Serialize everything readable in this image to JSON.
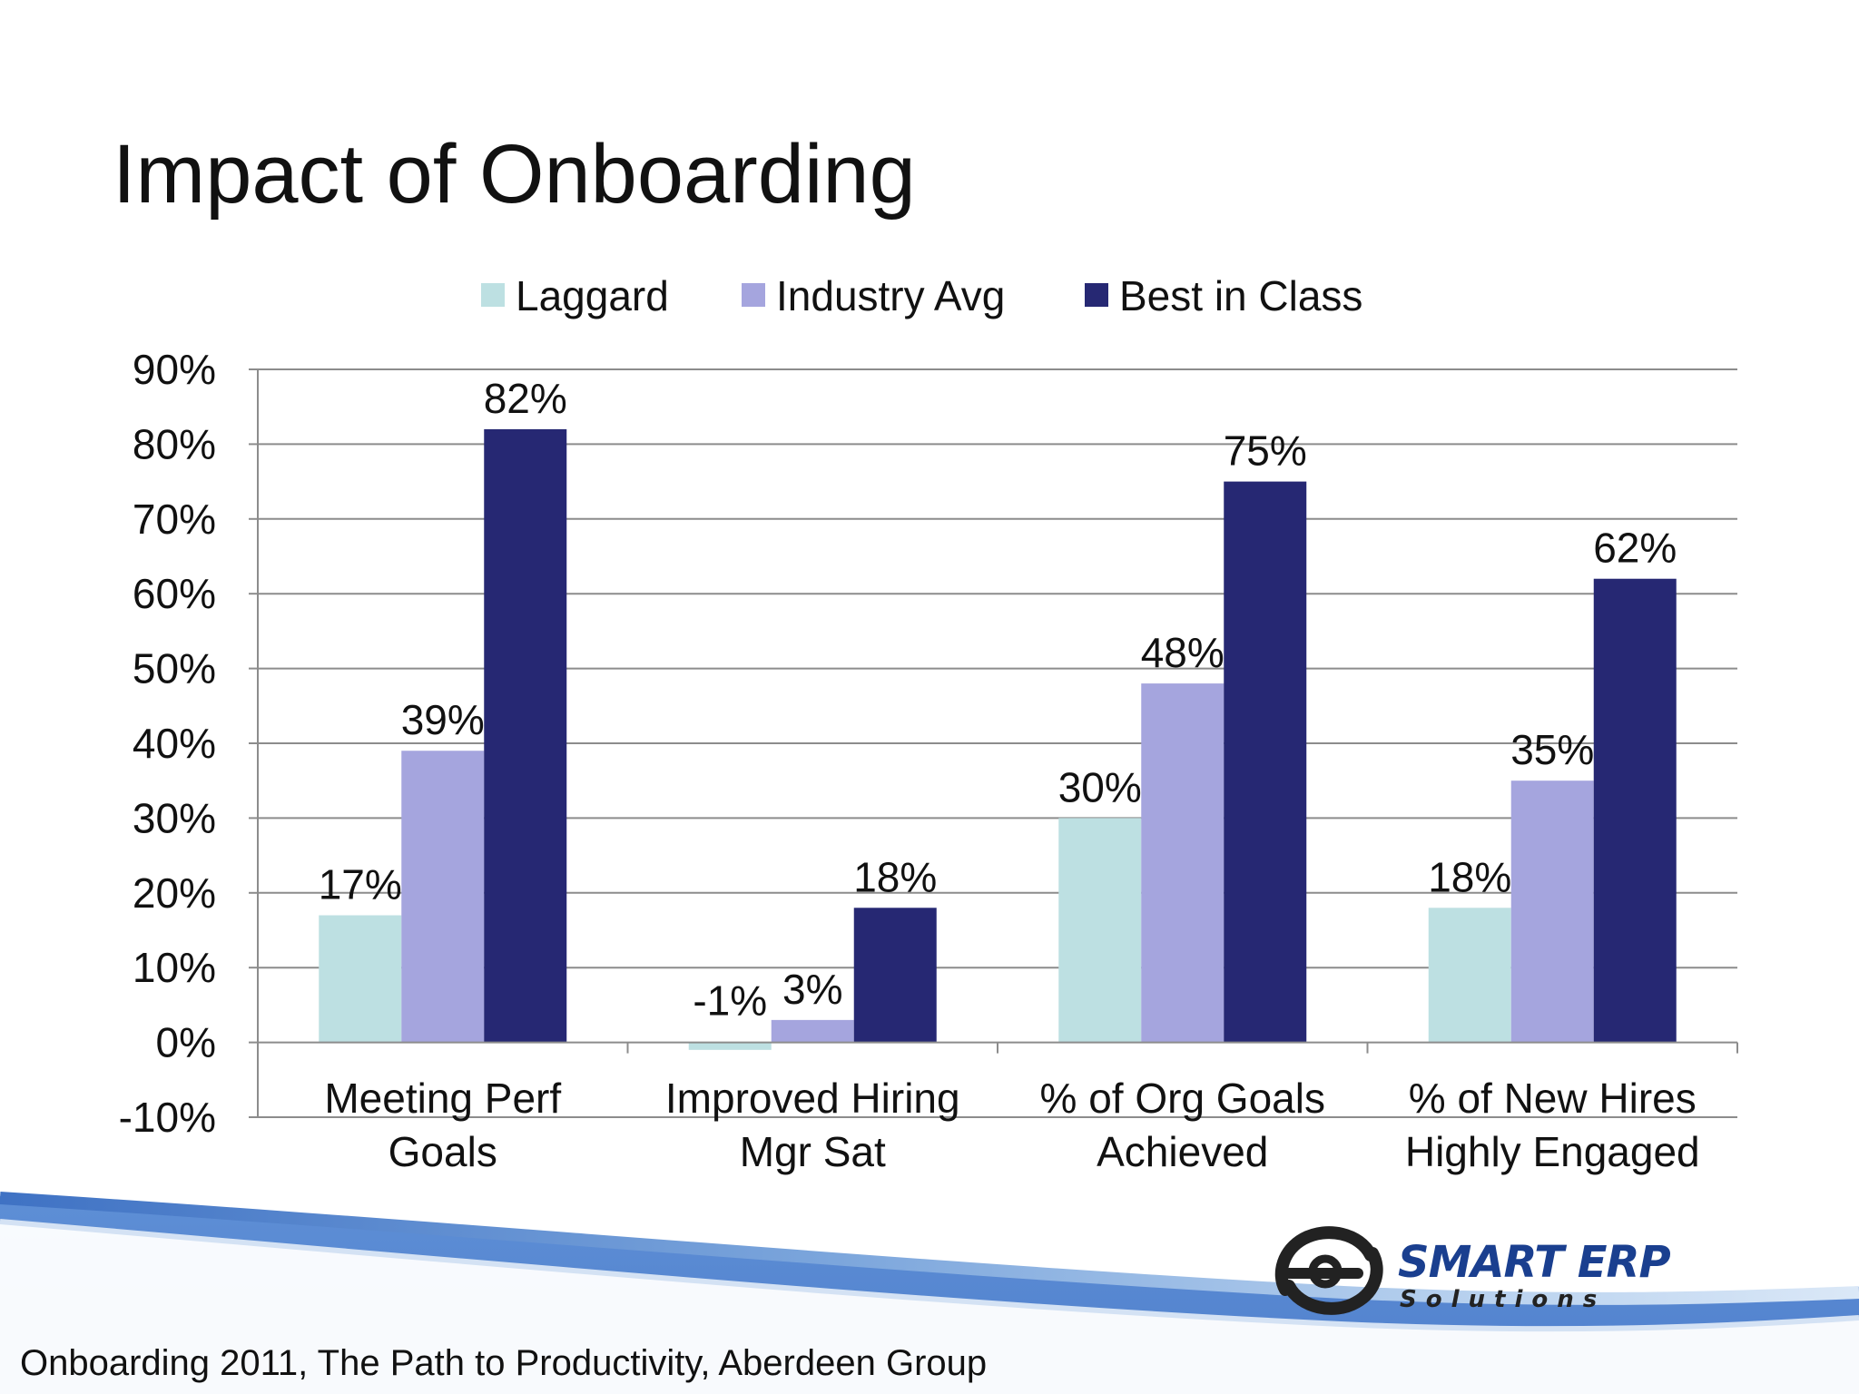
{
  "slide": {
    "title": "Impact of Onboarding",
    "citation": "Onboarding 2011, The Path to Productivity, Aberdeen Group"
  },
  "logo": {
    "word1": "SMART ERP",
    "word2": "Solutions",
    "colors": {
      "primary": "#1a3f8f",
      "mark": "#222222"
    }
  },
  "chart_data": {
    "type": "bar",
    "title": "",
    "xlabel": "",
    "ylabel": "",
    "ylim": [
      -10,
      90
    ],
    "yticks": [
      "-10%",
      "0%",
      "10%",
      "20%",
      "30%",
      "40%",
      "50%",
      "60%",
      "70%",
      "80%",
      "90%"
    ],
    "ytick_values": [
      -10,
      0,
      10,
      20,
      30,
      40,
      50,
      60,
      70,
      80,
      90
    ],
    "grid": true,
    "legend_position": "top",
    "categories": [
      [
        "Meeting Perf",
        "Goals"
      ],
      [
        "Improved Hiring",
        "Mgr Sat"
      ],
      [
        "% of Org Goals",
        "Achieved"
      ],
      [
        "% of New Hires",
        "Highly Engaged"
      ]
    ],
    "series": [
      {
        "name": "Laggard",
        "color": "#bde0e2",
        "values": [
          17,
          -1,
          30,
          18
        ],
        "labels": [
          "17%",
          "-1%",
          "30%",
          "18%"
        ]
      },
      {
        "name": "Industry Avg",
        "color": "#a5a5de",
        "values": [
          39,
          3,
          48,
          35
        ],
        "labels": [
          "39%",
          "3%",
          "48%",
          "35%"
        ]
      },
      {
        "name": "Best in Class",
        "color": "#262873",
        "values": [
          82,
          18,
          75,
          62
        ],
        "labels": [
          "82%",
          "18%",
          "75%",
          "62%"
        ]
      }
    ]
  }
}
